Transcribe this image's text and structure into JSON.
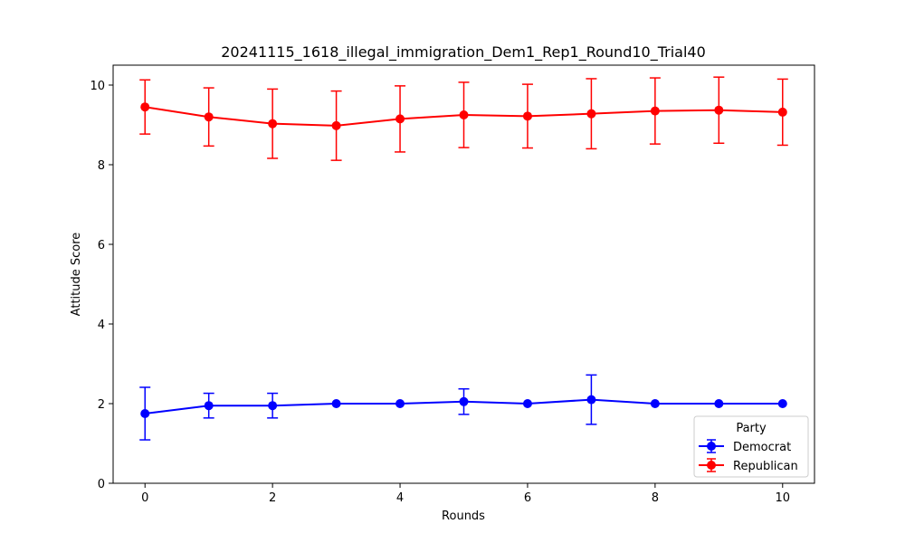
{
  "chart_data": {
    "type": "line",
    "title": "20241115_1618_illegal_immigration_Dem1_Rep1_Round10_Trial40",
    "xlabel": "Rounds",
    "ylabel": "Attitude Score",
    "xlim": [
      -0.5,
      10.5
    ],
    "ylim": [
      0,
      10.5
    ],
    "xticks": [
      0,
      2,
      4,
      6,
      8,
      10
    ],
    "yticks": [
      0,
      2,
      4,
      6,
      8,
      10
    ],
    "grid": false,
    "legend": {
      "title": "Party",
      "placement": "lower-right"
    },
    "x": [
      0,
      1,
      2,
      3,
      4,
      5,
      6,
      7,
      8,
      9,
      10
    ],
    "series": [
      {
        "name": "Democrat",
        "color": "#0000ff",
        "values": [
          1.75,
          1.95,
          1.95,
          2.0,
          2.0,
          2.05,
          2.0,
          2.1,
          2.0,
          2.0,
          2.0
        ],
        "errors": [
          0.66,
          0.31,
          0.31,
          0.0,
          0.0,
          0.32,
          0.0,
          0.62,
          0.0,
          0.0,
          0.0
        ]
      },
      {
        "name": "Republican",
        "color": "#ff0000",
        "values": [
          9.45,
          9.2,
          9.03,
          8.98,
          9.15,
          9.25,
          9.22,
          9.28,
          9.35,
          9.37,
          9.32
        ],
        "errors": [
          0.68,
          0.73,
          0.87,
          0.87,
          0.83,
          0.82,
          0.8,
          0.88,
          0.83,
          0.83,
          0.83
        ]
      }
    ]
  }
}
